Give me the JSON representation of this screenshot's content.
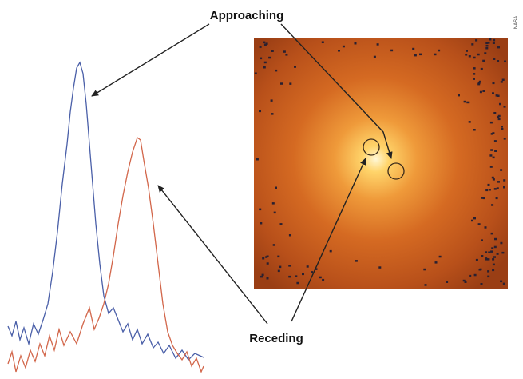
{
  "labels": {
    "approaching": "Approaching",
    "receding": "Receding",
    "credit": "NASA"
  }
}
